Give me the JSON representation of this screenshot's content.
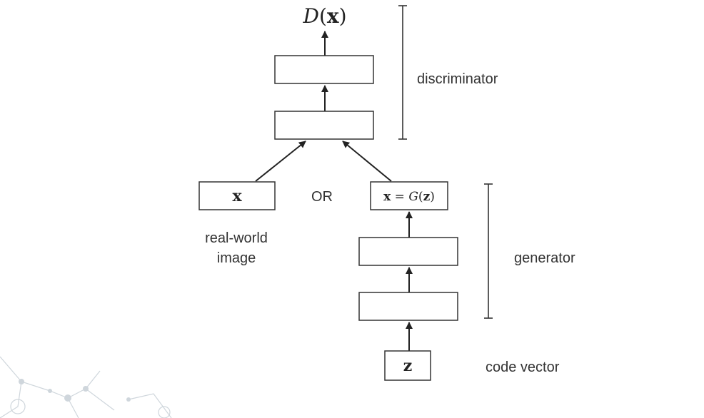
{
  "output_label": {
    "func": "D",
    "open": "(",
    "arg": "x",
    "close": ")"
  },
  "side_labels": {
    "discriminator": "discriminator",
    "generator": "generator",
    "code_vector": "code vector"
  },
  "real_input": {
    "symbol": "x",
    "caption_line1": "real-world",
    "caption_line2": "image"
  },
  "or_label": "OR",
  "generated_input": {
    "x": "x",
    "eq": " = ",
    "func": "G",
    "open": "(",
    "arg": "z",
    "close": ")"
  },
  "code_symbol": "z",
  "colors": {
    "line": "#222222",
    "box_stroke": "#333333",
    "decoration": "#cfd6dc"
  }
}
